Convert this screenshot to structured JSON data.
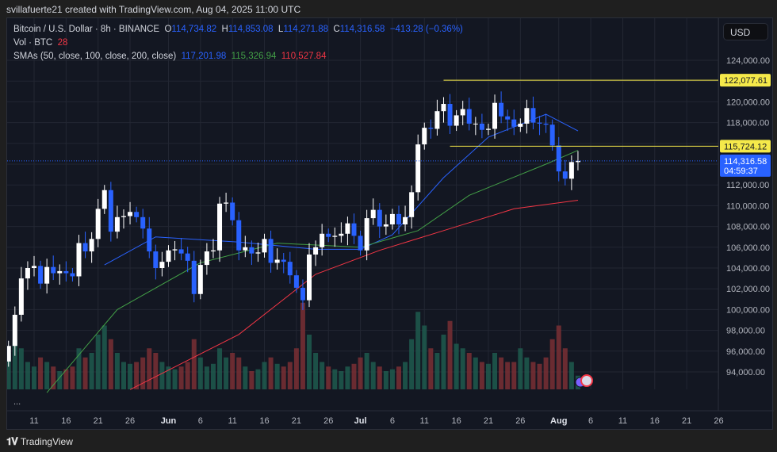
{
  "credit": "svillafuerte21 created with TradingView.com, Aug 04, 2025 11:00 UTC",
  "legend": {
    "symbol": "Bitcoin / U.S. Dollar · 8h · BINANCE",
    "o_label": "O",
    "o": "114,734.82",
    "h_label": "H",
    "h": "114,853.08",
    "l_label": "L",
    "l": "114,271.88",
    "c_label": "C",
    "c": "114,316.58",
    "change": "−413.28 (−0.36%)",
    "vol_label": "Vol · BTC",
    "vol": "28",
    "sma_label": "SMAs (50, close, 100, close, 200, close)",
    "sma50": "117,201.98",
    "sma100": "115,326.94",
    "sma200": "110,527.84"
  },
  "currency_button": "USD",
  "more_indicator": "...",
  "footer": {
    "logo_mark": "TV",
    "brand": "TradingView"
  },
  "colors": {
    "up": "#ffffff",
    "down": "#2962ff",
    "sma50": "#2962ff",
    "sma100": "#43a047",
    "sma200": "#f23645",
    "level": "#f5e94a",
    "background": "#131722",
    "grid": "#232733"
  },
  "chart_data": {
    "type": "candlestick",
    "interval": "8h",
    "ylim": [
      92000,
      126000
    ],
    "y_ticks": [
      94000,
      96000,
      98000,
      100000,
      102000,
      104000,
      106000,
      108000,
      110000,
      112000,
      118000,
      120000,
      124000
    ],
    "y_tick_labels": [
      "94,000.00",
      "96,000.00",
      "98,000.00",
      "100,000.00",
      "102,000.00",
      "104,000.00",
      "106,000.00",
      "108,000.00",
      "110,000.00",
      "112,000.00",
      "118,000.00",
      "120,000.00",
      "124,000.00"
    ],
    "x_ticks": [
      {
        "date": "2025-05-11",
        "label": "11"
      },
      {
        "date": "2025-05-16",
        "label": "16"
      },
      {
        "date": "2025-05-21",
        "label": "21"
      },
      {
        "date": "2025-05-26",
        "label": "26"
      },
      {
        "date": "2025-06-01",
        "label": "Jun"
      },
      {
        "date": "2025-06-06",
        "label": "6"
      },
      {
        "date": "2025-06-11",
        "label": "11"
      },
      {
        "date": "2025-06-16",
        "label": "16"
      },
      {
        "date": "2025-06-21",
        "label": "21"
      },
      {
        "date": "2025-06-26",
        "label": "26"
      },
      {
        "date": "2025-07-01",
        "label": "Jul"
      },
      {
        "date": "2025-07-06",
        "label": "6"
      },
      {
        "date": "2025-07-11",
        "label": "11"
      },
      {
        "date": "2025-07-16",
        "label": "16"
      },
      {
        "date": "2025-07-21",
        "label": "21"
      },
      {
        "date": "2025-07-26",
        "label": "26"
      },
      {
        "date": "2025-08-01",
        "label": "Aug"
      },
      {
        "date": "2025-08-06",
        "label": "6"
      },
      {
        "date": "2025-08-11",
        "label": "11"
      },
      {
        "date": "2025-08-16",
        "label": "16"
      },
      {
        "date": "2025-08-21",
        "label": "21"
      },
      {
        "date": "2025-08-26",
        "label": "26"
      }
    ],
    "x_range": [
      "2025-05-07",
      "2025-08-28"
    ],
    "start_date": "2025-05-07",
    "daily_close": [
      96500,
      99500,
      103000,
      104000,
      104200,
      102500,
      104100,
      103500,
      103700,
      103500,
      103200,
      106400,
      105600,
      106800,
      109700,
      111500,
      107500,
      108900,
      109000,
      109400,
      108900,
      107800,
      105600,
      104000,
      104600,
      105700,
      105800,
      105400,
      104700,
      101500,
      104300,
      105600,
      105700,
      110200,
      110300,
      108600,
      105700,
      106000,
      105400,
      105500,
      106800,
      104500,
      104800,
      104600,
      103300,
      102100,
      100900,
      105300,
      106000,
      107300,
      107000,
      107100,
      107300,
      108300,
      107100,
      105700,
      108800,
      109600,
      108000,
      108200,
      109200,
      108200,
      108900,
      111300,
      115900,
      117500,
      117400,
      119100,
      119800,
      117700,
      118700,
      119300,
      117900,
      117900,
      117300,
      117400,
      119900,
      118600,
      118300,
      117600,
      117900,
      119400,
      118000,
      117900,
      117800,
      115800,
      113300,
      112600,
      114200,
      114316.58
    ],
    "daily_volume_relative": [
      40,
      55,
      45,
      30,
      25,
      35,
      30,
      25,
      20,
      22,
      25,
      45,
      35,
      40,
      60,
      70,
      55,
      40,
      30,
      28,
      30,
      35,
      45,
      40,
      30,
      25,
      22,
      25,
      30,
      55,
      35,
      25,
      28,
      45,
      35,
      40,
      35,
      25,
      20,
      22,
      30,
      35,
      28,
      25,
      30,
      45,
      95,
      60,
      40,
      30,
      25,
      22,
      20,
      25,
      28,
      35,
      40,
      30,
      25,
      20,
      22,
      25,
      30,
      55,
      85,
      70,
      45,
      40,
      60,
      75,
      50,
      45,
      40,
      35,
      30,
      28,
      40,
      35,
      30,
      30,
      45,
      35,
      30,
      28,
      35,
      55,
      70,
      45,
      30,
      15
    ],
    "series": [
      {
        "name": "SMA 50",
        "color": "#2962ff",
        "points": [
          [
            "2025-05-22",
            104300
          ],
          [
            "2025-05-30",
            107000
          ],
          [
            "2025-06-12",
            106500
          ],
          [
            "2025-06-24",
            105800
          ],
          [
            "2025-07-01",
            105800
          ],
          [
            "2025-07-06",
            107200
          ],
          [
            "2025-07-14",
            112700
          ],
          [
            "2025-07-21",
            116600
          ],
          [
            "2025-07-30",
            118800
          ],
          [
            "2025-08-04",
            117201.98
          ]
        ]
      },
      {
        "name": "SMA 100",
        "color": "#43a047",
        "points": [
          [
            "2025-05-13",
            92000
          ],
          [
            "2025-05-24",
            100000
          ],
          [
            "2025-06-06",
            104500
          ],
          [
            "2025-06-18",
            106400
          ],
          [
            "2025-07-01",
            106000
          ],
          [
            "2025-07-10",
            107600
          ],
          [
            "2025-07-18",
            111000
          ],
          [
            "2025-07-30",
            114000
          ],
          [
            "2025-08-04",
            115326.94
          ]
        ]
      },
      {
        "name": "SMA 200",
        "color": "#f23645",
        "points": [
          [
            "2025-05-26",
            92300
          ],
          [
            "2025-06-12",
            97600
          ],
          [
            "2025-06-24",
            103400
          ],
          [
            "2025-07-04",
            105700
          ],
          [
            "2025-07-14",
            107600
          ],
          [
            "2025-07-25",
            109700
          ],
          [
            "2025-08-04",
            110527.84
          ]
        ]
      }
    ],
    "levels": [
      {
        "price": 122077.61,
        "label": "122,077.61",
        "from": "2025-07-14",
        "color": "#f5e94a"
      },
      {
        "price": 115724.12,
        "label": "115,724.12",
        "from": "2025-07-15",
        "color": "#f5e94a"
      }
    ],
    "last_price": {
      "price": 114316.58,
      "label": "114,316.58",
      "countdown": "04:59:37",
      "color": "#2962ff"
    }
  }
}
